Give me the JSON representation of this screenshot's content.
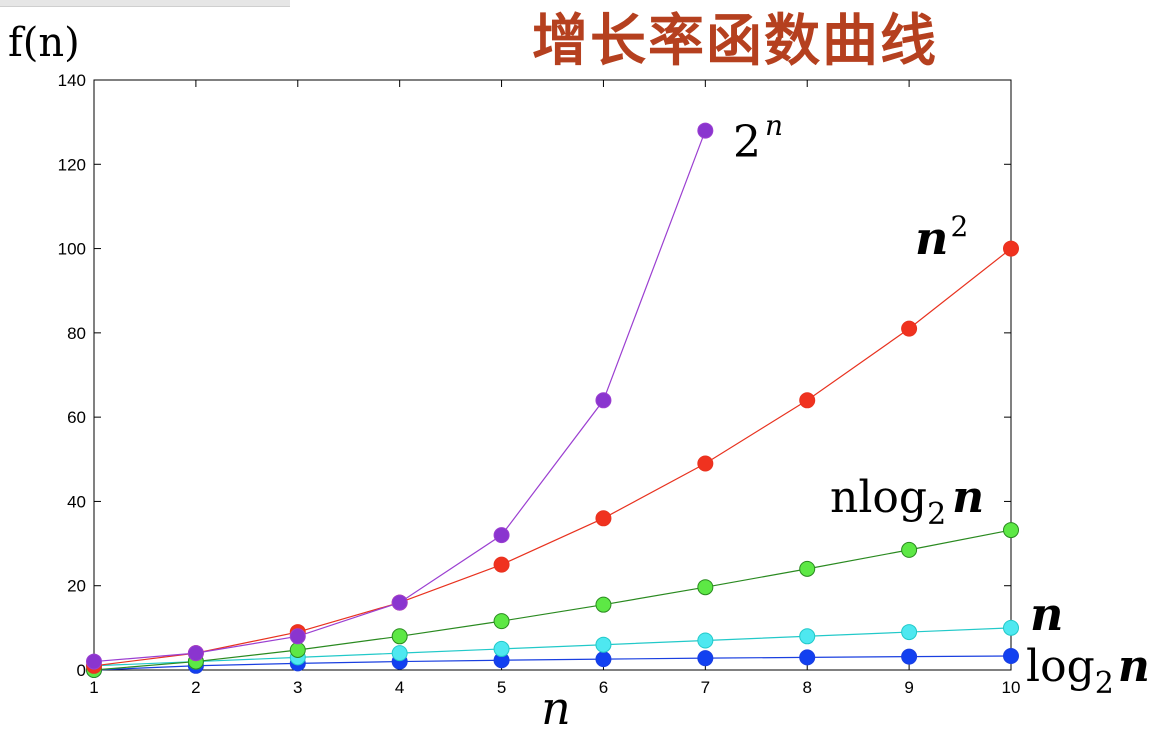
{
  "chart_data": {
    "type": "line",
    "title": "增长率函数曲线",
    "ylabel": "f(n)",
    "xlabel": "n",
    "x": [
      1,
      2,
      3,
      4,
      5,
      6,
      7,
      8,
      9,
      10
    ],
    "xlim": [
      1,
      10
    ],
    "ylim": [
      0,
      140
    ],
    "xticks": [
      "1",
      "2",
      "3",
      "4",
      "5",
      "6",
      "7",
      "8",
      "9",
      "10"
    ],
    "yticks": [
      "0",
      "20",
      "40",
      "60",
      "80",
      "100",
      "120",
      "140"
    ],
    "grid": false,
    "series": [
      {
        "name_base": "2",
        "name_sup": "n",
        "color": "#9b3fd1",
        "marker_color": "#8a35cf",
        "values": [
          2,
          4,
          8,
          16,
          32,
          64,
          128,
          null,
          null,
          null
        ]
      },
      {
        "name_base": "n",
        "name_sup": "2",
        "color": "#e8321f",
        "marker_color": "#f0321f",
        "values": [
          1,
          4,
          9,
          16,
          25,
          36,
          49,
          64,
          81,
          100
        ]
      },
      {
        "name_base": "nlog",
        "name_sub": "2",
        "name_tail": "n",
        "color": "#2a8a20",
        "marker_color": "#5de845",
        "values": [
          0,
          2,
          4.75,
          8,
          11.6,
          15.5,
          19.65,
          24,
          28.5,
          33.2
        ]
      },
      {
        "name_base": "n",
        "color": "#22c9c9",
        "marker_color": "#4ee8f0",
        "values": [
          1,
          2,
          3,
          4,
          5,
          6,
          7,
          8,
          9,
          10
        ]
      },
      {
        "name_base": "log",
        "name_sub": "2",
        "name_tail": "n",
        "color": "#1a3fe0",
        "marker_color": "#1240f0",
        "values": [
          0,
          1,
          1.58,
          2,
          2.32,
          2.58,
          2.81,
          3,
          3.17,
          3.32
        ]
      }
    ]
  }
}
